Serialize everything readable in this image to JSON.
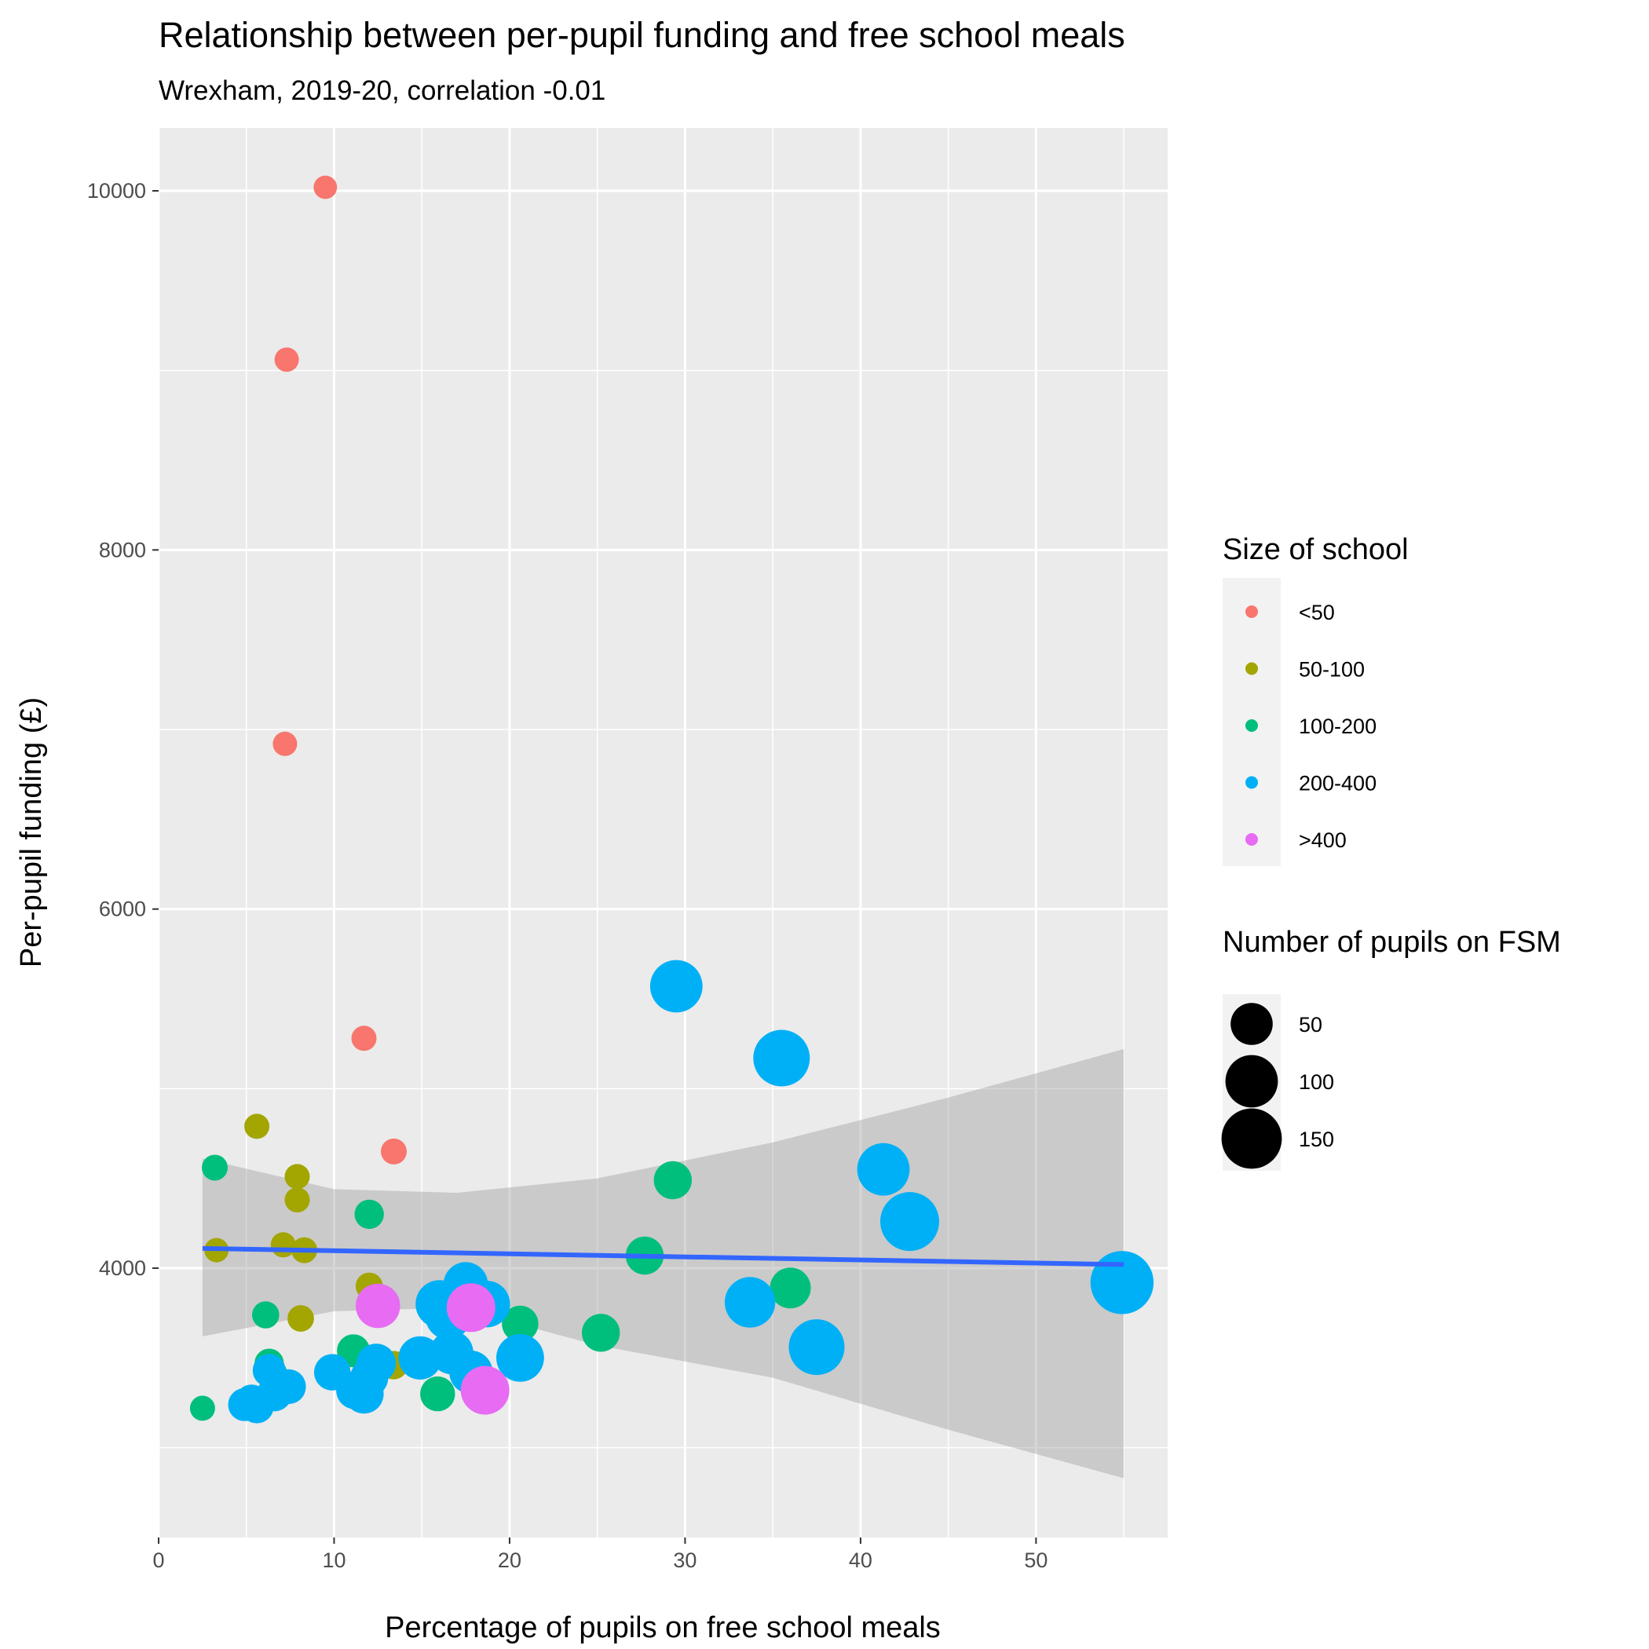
{
  "chart_data": {
    "type": "scatter",
    "title": "Relationship between per-pupil funding and free school meals",
    "subtitle": "Wrexham, 2019-20, correlation -0.01",
    "xlabel": "Percentage of pupils on free school meals",
    "ylabel": "Per-pupil funding (£)",
    "xlim": [
      0,
      57.5
    ],
    "ylim": [
      2500,
      10350
    ],
    "x_ticks": [
      0,
      10,
      20,
      30,
      40,
      50
    ],
    "y_ticks": [
      4000,
      6000,
      8000,
      10000
    ],
    "grid": true,
    "colors": {
      "<50": "#f8766d",
      "50-100": "#a3a500",
      "100-200": "#00bf7d",
      "200-400": "#00b0f6",
      ">400": "#e76bf3",
      "panel": "#ebebeb",
      "trend": "#3366ff",
      "ribbon": "#999999"
    },
    "legend_size_groups": {
      "title": "Size of school",
      "entries": [
        "<50",
        "50-100",
        "100-200",
        "200-400",
        ">400"
      ]
    },
    "legend_fsm": {
      "title": "Number of pupils on FSM",
      "entries": [
        {
          "label": "50",
          "value": 50
        },
        {
          "label": "100",
          "value": 100
        },
        {
          "label": "150",
          "value": 150
        }
      ]
    },
    "trend_line": {
      "x": [
        2.5,
        55
      ],
      "y": [
        4110,
        4020
      ]
    },
    "confidence_band": {
      "x": [
        2.5,
        10,
        17,
        25,
        35,
        45,
        55
      ],
      "upper": [
        4610,
        4440,
        4420,
        4500,
        4700,
        4950,
        5220
      ],
      "lower": [
        3620,
        3760,
        3780,
        3570,
        3390,
        3100,
        2830
      ]
    },
    "series": [
      {
        "name": "<50",
        "points": [
          {
            "x": 9.5,
            "y": 10020,
            "fsm": 3
          },
          {
            "x": 7.3,
            "y": 9060,
            "fsm": 4
          },
          {
            "x": 7.2,
            "y": 6920,
            "fsm": 4
          },
          {
            "x": 11.7,
            "y": 5280,
            "fsm": 5
          },
          {
            "x": 13.4,
            "y": 4650,
            "fsm": 6
          }
        ]
      },
      {
        "name": "50-100",
        "points": [
          {
            "x": 5.6,
            "y": 4790,
            "fsm": 5
          },
          {
            "x": 7.9,
            "y": 4510,
            "fsm": 5
          },
          {
            "x": 7.9,
            "y": 4380,
            "fsm": 5
          },
          {
            "x": 7.1,
            "y": 4130,
            "fsm": 5
          },
          {
            "x": 3.3,
            "y": 4100,
            "fsm": 4
          },
          {
            "x": 8.3,
            "y": 4100,
            "fsm": 6
          },
          {
            "x": 12.0,
            "y": 3900,
            "fsm": 8
          },
          {
            "x": 8.1,
            "y": 3720,
            "fsm": 7
          },
          {
            "x": 13.4,
            "y": 3460,
            "fsm": 10
          }
        ]
      },
      {
        "name": "100-200",
        "points": [
          {
            "x": 3.2,
            "y": 4560,
            "fsm": 6
          },
          {
            "x": 12.0,
            "y": 4300,
            "fsm": 12
          },
          {
            "x": 29.3,
            "y": 4490,
            "fsm": 35
          },
          {
            "x": 27.7,
            "y": 4070,
            "fsm": 35
          },
          {
            "x": 36.0,
            "y": 3890,
            "fsm": 45
          },
          {
            "x": 6.1,
            "y": 3740,
            "fsm": 8
          },
          {
            "x": 20.6,
            "y": 3690,
            "fsm": 30
          },
          {
            "x": 25.2,
            "y": 3640,
            "fsm": 35
          },
          {
            "x": 11.1,
            "y": 3540,
            "fsm": 20
          },
          {
            "x": 6.3,
            "y": 3470,
            "fsm": 12
          },
          {
            "x": 6.5,
            "y": 3410,
            "fsm": 12
          },
          {
            "x": 15.9,
            "y": 3300,
            "fsm": 25
          },
          {
            "x": 2.5,
            "y": 3220,
            "fsm": 5
          }
        ]
      },
      {
        "name": "200-400",
        "points": [
          {
            "x": 29.5,
            "y": 5570,
            "fsm": 100
          },
          {
            "x": 35.5,
            "y": 5170,
            "fsm": 125
          },
          {
            "x": 41.3,
            "y": 4550,
            "fsm": 100
          },
          {
            "x": 42.8,
            "y": 4260,
            "fsm": 140
          },
          {
            "x": 54.9,
            "y": 3920,
            "fsm": 170
          },
          {
            "x": 17.5,
            "y": 3910,
            "fsm": 60
          },
          {
            "x": 33.7,
            "y": 3810,
            "fsm": 90
          },
          {
            "x": 16.0,
            "y": 3800,
            "fsm": 75
          },
          {
            "x": 18.7,
            "y": 3800,
            "fsm": 70
          },
          {
            "x": 16.5,
            "y": 3730,
            "fsm": 65
          },
          {
            "x": 37.5,
            "y": 3560,
            "fsm": 120
          },
          {
            "x": 16.7,
            "y": 3530,
            "fsm": 55
          },
          {
            "x": 14.9,
            "y": 3500,
            "fsm": 55
          },
          {
            "x": 20.6,
            "y": 3500,
            "fsm": 75
          },
          {
            "x": 12.4,
            "y": 3470,
            "fsm": 40
          },
          {
            "x": 9.9,
            "y": 3420,
            "fsm": 30
          },
          {
            "x": 17.8,
            "y": 3420,
            "fsm": 55
          },
          {
            "x": 12.0,
            "y": 3390,
            "fsm": 35
          },
          {
            "x": 6.3,
            "y": 3430,
            "fsm": 20
          },
          {
            "x": 7.4,
            "y": 3340,
            "fsm": 25
          },
          {
            "x": 11.2,
            "y": 3320,
            "fsm": 35
          },
          {
            "x": 11.7,
            "y": 3300,
            "fsm": 40
          },
          {
            "x": 6.6,
            "y": 3300,
            "fsm": 25
          },
          {
            "x": 5.3,
            "y": 3260,
            "fsm": 20
          },
          {
            "x": 4.9,
            "y": 3240,
            "fsm": 20
          },
          {
            "x": 5.6,
            "y": 3230,
            "fsm": 22
          }
        ]
      },
      {
        "name": ">400",
        "points": [
          {
            "x": 12.5,
            "y": 3790,
            "fsm": 60
          },
          {
            "x": 17.8,
            "y": 3780,
            "fsm": 80
          },
          {
            "x": 18.6,
            "y": 3320,
            "fsm": 80
          }
        ]
      }
    ]
  }
}
